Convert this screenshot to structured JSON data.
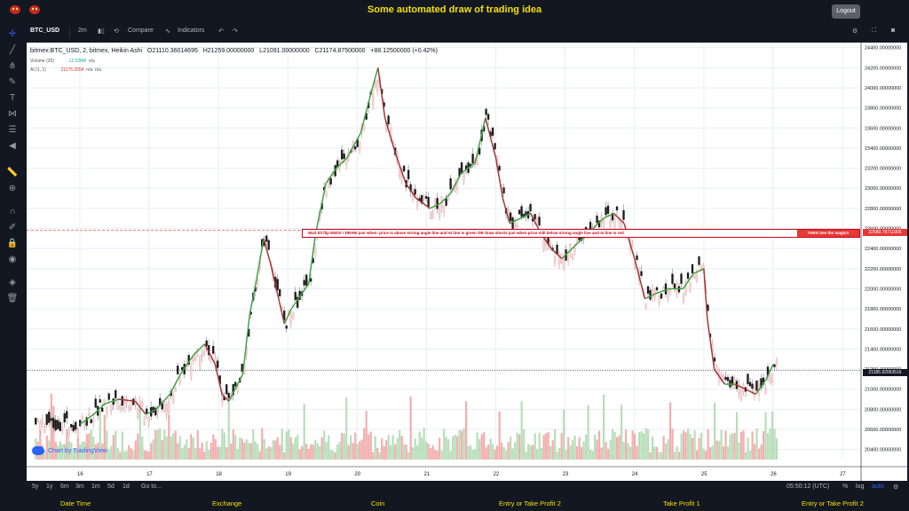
{
  "header": {
    "title": "Some automated draw of trading idea",
    "logout_label": "Logout"
  },
  "toolbar": {
    "symbol": "BTC_USD",
    "interval": "2m",
    "compare_label": "Compare",
    "indicators_label": "Indicators"
  },
  "legend": {
    "main": "bitmex:BTC_USD, 2, bitmex, Heikin Ashi",
    "open": "O21110.36014695",
    "high": "H21259.00000000",
    "low": "L21091.00000000",
    "close": "C21174.87500000",
    "change": "+88.12500000 (+0.42%)",
    "volume_label": "Volume (20)",
    "volume_value": "12.528M",
    "volume_na": "n/a",
    "ai_label": "AI (1, 1)",
    "ai_value": "21175.2054",
    "ai_na1": "n/a",
    "ai_na2": "n/a"
  },
  "banner": {
    "text": "Wait till flip ENDS  !   DRAW just when:  price is above strong angle line and AI line is green        OR        draw shorts just when price still below strong angle line and AI line is red",
    "right_text": "THEN See the magic!!"
  },
  "price_tags": {
    "red_level": "22580.79711905",
    "current": "21185.92063516"
  },
  "watermark": "Chart by TradingView",
  "bottom_toolbar": {
    "ranges": [
      "5y",
      "1y",
      "6m",
      "3m",
      "1m",
      "5d",
      "1d"
    ],
    "goto": "Go to...",
    "time": "05:50:12 (UTC)",
    "pct": "%",
    "log": "log",
    "auto": "auto"
  },
  "footer": {
    "items": [
      "Date Time",
      "Exchange",
      "Coin",
      "Entry or Take Profit 2",
      "Take Profit 1",
      "Entry or Take Profit 2"
    ]
  },
  "chart_data": {
    "type": "candlestick",
    "x_ticks": [
      "16",
      "17",
      "18",
      "19",
      "20",
      "21",
      "22",
      "23",
      "24",
      "25",
      "26",
      "27"
    ],
    "y_ticks": [
      "20400.00000000",
      "20600.00000000",
      "20800.00000000",
      "21000.00000000",
      "21200.00000000",
      "21400.00000000",
      "21600.00000000",
      "21800.00000000",
      "22000.00000000",
      "22200.00000000",
      "22400.00000000",
      "22600.00000000",
      "22800.00000000",
      "23000.00000000",
      "23200.00000000",
      "23400.00000000",
      "23600.00000000",
      "23800.00000000",
      "24000.00000000",
      "24200.00000000",
      "24400.00000000"
    ],
    "ylim": [
      20300,
      24450
    ],
    "ai_line": [
      [
        0,
        20650
      ],
      [
        0.2,
        20750
      ],
      [
        0.35,
        20850
      ],
      [
        0.55,
        20900
      ],
      [
        0.8,
        20880
      ],
      [
        0.95,
        20750
      ],
      [
        1.1,
        20800
      ],
      [
        1.3,
        20950
      ],
      [
        1.45,
        21150
      ],
      [
        1.65,
        21350
      ],
      [
        1.8,
        21450
      ],
      [
        1.95,
        21250
      ],
      [
        2.05,
        20950
      ],
      [
        2.15,
        20880
      ],
      [
        2.35,
        21150
      ],
      [
        2.45,
        21750
      ],
      [
        2.55,
        22100
      ],
      [
        2.65,
        22500
      ],
      [
        2.75,
        22250
      ],
      [
        2.85,
        21950
      ],
      [
        2.95,
        21650
      ],
      [
        3.05,
        21800
      ],
      [
        3.15,
        21900
      ],
      [
        3.3,
        22050
      ],
      [
        3.4,
        22550
      ],
      [
        3.55,
        23050
      ],
      [
        3.7,
        23200
      ],
      [
        3.85,
        23300
      ],
      [
        4.05,
        23550
      ],
      [
        4.2,
        23950
      ],
      [
        4.3,
        24200
      ],
      [
        4.4,
        23700
      ],
      [
        4.55,
        23350
      ],
      [
        4.7,
        23050
      ],
      [
        4.85,
        22900
      ],
      [
        5.05,
        22800
      ],
      [
        5.2,
        22850
      ],
      [
        5.35,
        22950
      ],
      [
        5.5,
        23150
      ],
      [
        5.7,
        23250
      ],
      [
        5.85,
        23700
      ],
      [
        6.0,
        23300
      ],
      [
        6.1,
        22900
      ],
      [
        6.2,
        22650
      ],
      [
        6.35,
        22700
      ],
      [
        6.5,
        22750
      ],
      [
        6.65,
        22550
      ],
      [
        6.8,
        22400
      ],
      [
        6.95,
        22300
      ],
      [
        7.1,
        22400
      ],
      [
        7.25,
        22500
      ],
      [
        7.4,
        22600
      ],
      [
        7.55,
        22700
      ],
      [
        7.7,
        22750
      ],
      [
        7.85,
        22650
      ],
      [
        8.0,
        22300
      ],
      [
        8.15,
        21900
      ],
      [
        8.3,
        21950
      ],
      [
        8.5,
        22000
      ],
      [
        8.7,
        22000
      ],
      [
        8.85,
        22150
      ],
      [
        9.0,
        22200
      ],
      [
        9.05,
        21700
      ],
      [
        9.15,
        21200
      ],
      [
        9.3,
        21050
      ],
      [
        9.45,
        21050
      ],
      [
        9.6,
        21000
      ],
      [
        9.75,
        20950
      ],
      [
        9.9,
        21100
      ],
      [
        10.0,
        21250
      ]
    ],
    "volume_note": "green/red volume histogram along bottom"
  }
}
